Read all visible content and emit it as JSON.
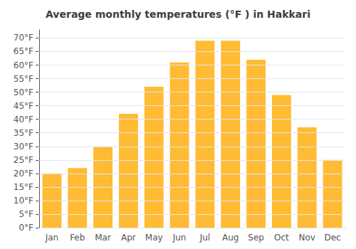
{
  "chart_data": {
    "type": "bar",
    "title": "Average monthly temperatures (°F ) in Hakkari",
    "categories": [
      "Jan",
      "Feb",
      "Mar",
      "Apr",
      "May",
      "Jun",
      "Jul",
      "Aug",
      "Sep",
      "Oct",
      "Nov",
      "Dec"
    ],
    "values": [
      20,
      22,
      30,
      42,
      52,
      61,
      69,
      69,
      62,
      49,
      37,
      25
    ],
    "color": "#FFBB33",
    "ylim": [
      0,
      73
    ],
    "yticks": [
      {
        "value": 0,
        "label": "0°F"
      },
      {
        "value": 5,
        "label": "5°F"
      },
      {
        "value": 10,
        "label": "10°F"
      },
      {
        "value": 15,
        "label": "15°F"
      },
      {
        "value": 20,
        "label": "20°F"
      },
      {
        "value": 25,
        "label": "25°F"
      },
      {
        "value": 30,
        "label": "30°F"
      },
      {
        "value": 35,
        "label": "35°F"
      },
      {
        "value": 40,
        "label": "40°F"
      },
      {
        "value": 45,
        "label": "45°F"
      },
      {
        "value": 50,
        "label": "50°F"
      },
      {
        "value": 55,
        "label": "55°F"
      },
      {
        "value": 60,
        "label": "60°F"
      },
      {
        "value": 65,
        "label": "65°F"
      },
      {
        "value": 70,
        "label": "70°F"
      }
    ],
    "grid": true
  }
}
